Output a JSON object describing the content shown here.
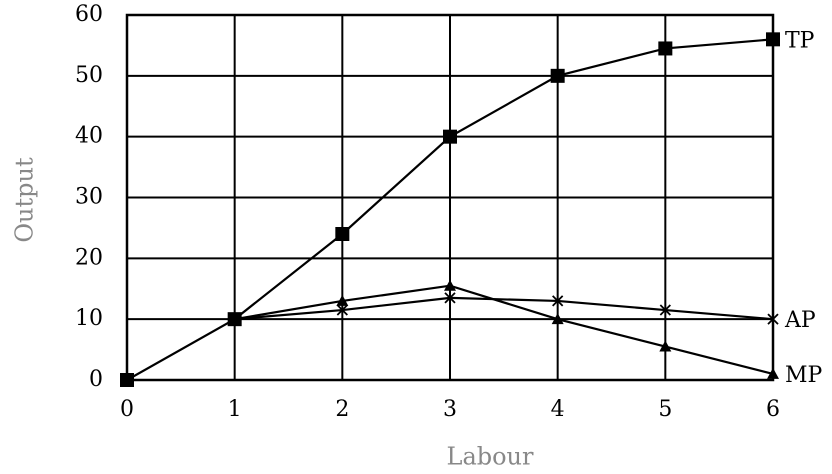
{
  "chart_data": {
    "type": "line",
    "x_label": "Labour",
    "y_label": "Output",
    "x": [
      0,
      1,
      2,
      3,
      4,
      5,
      6
    ],
    "series": [
      {
        "name": "TP",
        "color": "#000000",
        "marker": "square",
        "values": [
          0,
          10,
          24,
          40,
          50,
          54.5,
          56
        ]
      },
      {
        "name": "AP",
        "color": "#000000",
        "marker": "x",
        "values": [
          null,
          10,
          11.5,
          13.5,
          13,
          11.5,
          10
        ]
      },
      {
        "name": "MP",
        "color": "#000000",
        "marker": "triangle",
        "values": [
          null,
          10,
          13,
          15.5,
          10,
          5.5,
          1
        ]
      }
    ],
    "xlim": [
      0,
      6
    ],
    "xticks": [
      0,
      1,
      2,
      3,
      4,
      5,
      6
    ],
    "ylim": [
      0,
      60
    ],
    "yticks": [
      0,
      10,
      20,
      30,
      40,
      50,
      60
    ],
    "grid": true
  }
}
